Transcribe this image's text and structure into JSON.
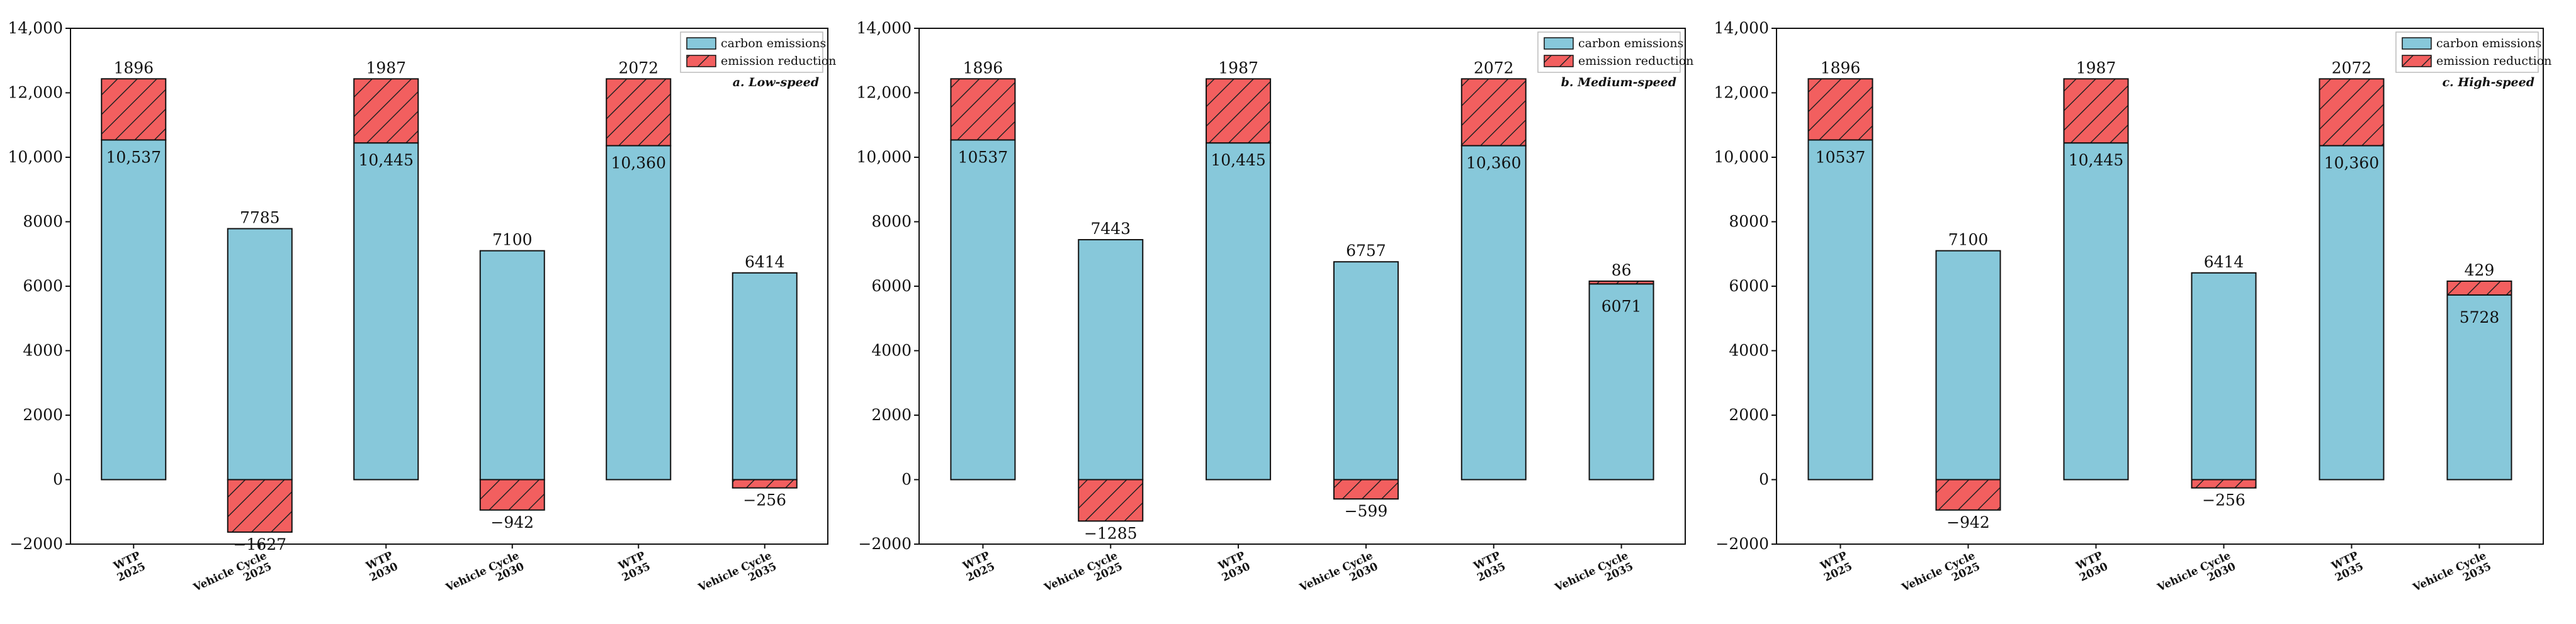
{
  "colors": {
    "carbon": "#87c8da",
    "reduction": "#f25f5f",
    "edge": "#111111",
    "hatch": "#222222"
  },
  "legend": {
    "carbon_label": "carbon emissions",
    "reduction_label": "emission reduction"
  },
  "chart_data": [
    {
      "type": "bar",
      "panel_title": "a. Low-speed",
      "ylim": [
        -2000,
        14000
      ],
      "yticks": [
        {
          "value": -2000,
          "label": "−2000"
        },
        {
          "value": 0,
          "label": "0"
        },
        {
          "value": 2000,
          "label": "2000"
        },
        {
          "value": 4000,
          "label": "4000"
        },
        {
          "value": 6000,
          "label": "6000"
        },
        {
          "value": 8000,
          "label": "8000"
        },
        {
          "value": 10000,
          "label": "10,000"
        },
        {
          "value": 12000,
          "label": "12,000"
        },
        {
          "value": 14000,
          "label": "14,000"
        }
      ],
      "categories": [
        {
          "line1": "WTP",
          "line2": "2025"
        },
        {
          "line1": "Vehicle Cycle",
          "line2": "2025"
        },
        {
          "line1": "WTP",
          "line2": "2030"
        },
        {
          "line1": "Vehicle Cycle",
          "line2": "2030"
        },
        {
          "line1": "WTP",
          "line2": "2035"
        },
        {
          "line1": "Vehicle Cycle",
          "line2": "2035"
        }
      ],
      "series": [
        {
          "name": "carbon emissions",
          "values": [
            10537,
            7785,
            10445,
            7100,
            10360,
            6414
          ],
          "labels": [
            "10,537",
            "7785",
            "10,445",
            "7100",
            "10,360",
            "6414"
          ]
        },
        {
          "name": "emission reduction",
          "values": [
            1896,
            -1627,
            1987,
            -942,
            2072,
            -256
          ],
          "labels": [
            "1896",
            "−1627",
            "1987",
            "−942",
            "2072",
            "−256"
          ]
        }
      ]
    },
    {
      "type": "bar",
      "panel_title": "b. Medium-speed",
      "ylim": [
        -2000,
        14000
      ],
      "yticks": [
        {
          "value": -2000,
          "label": "−2000"
        },
        {
          "value": 0,
          "label": "0"
        },
        {
          "value": 2000,
          "label": "2000"
        },
        {
          "value": 4000,
          "label": "4000"
        },
        {
          "value": 6000,
          "label": "6000"
        },
        {
          "value": 8000,
          "label": "8000"
        },
        {
          "value": 10000,
          "label": "10,000"
        },
        {
          "value": 12000,
          "label": "12,000"
        },
        {
          "value": 14000,
          "label": "14,000"
        }
      ],
      "categories": [
        {
          "line1": "WTP",
          "line2": "2025"
        },
        {
          "line1": "Vehicle Cycle",
          "line2": "2025"
        },
        {
          "line1": "WTP",
          "line2": "2030"
        },
        {
          "line1": "Vehicle Cycle",
          "line2": "2030"
        },
        {
          "line1": "WTP",
          "line2": "2035"
        },
        {
          "line1": "Vehicle Cycle",
          "line2": "2035"
        }
      ],
      "series": [
        {
          "name": "carbon emissions",
          "values": [
            10537,
            7443,
            10445,
            6757,
            10360,
            6071
          ],
          "labels": [
            "10537",
            "7443",
            "10,445",
            "6757",
            "10,360",
            "6071"
          ]
        },
        {
          "name": "emission reduction",
          "values": [
            1896,
            -1285,
            1987,
            -599,
            2072,
            86
          ],
          "labels": [
            "1896",
            "−1285",
            "1987",
            "−599",
            "2072",
            "86"
          ]
        }
      ]
    },
    {
      "type": "bar",
      "panel_title": "c. High-speed",
      "ylim": [
        -2000,
        14000
      ],
      "yticks": [
        {
          "value": -2000,
          "label": "−2000"
        },
        {
          "value": 0,
          "label": "0"
        },
        {
          "value": 2000,
          "label": "2000"
        },
        {
          "value": 4000,
          "label": "4000"
        },
        {
          "value": 6000,
          "label": "6000"
        },
        {
          "value": 8000,
          "label": "8000"
        },
        {
          "value": 10000,
          "label": "10,000"
        },
        {
          "value": 12000,
          "label": "12,000"
        },
        {
          "value": 14000,
          "label": "14,000"
        }
      ],
      "categories": [
        {
          "line1": "WTP",
          "line2": "2025"
        },
        {
          "line1": "Vehicle Cycle",
          "line2": "2025"
        },
        {
          "line1": "WTP",
          "line2": "2030"
        },
        {
          "line1": "Vehicle Cycle",
          "line2": "2030"
        },
        {
          "line1": "WTP",
          "line2": "2035"
        },
        {
          "line1": "Vehicle Cycle",
          "line2": "2035"
        }
      ],
      "series": [
        {
          "name": "carbon emissions",
          "values": [
            10537,
            7100,
            10445,
            6414,
            10360,
            5728
          ],
          "labels": [
            "10537",
            "7100",
            "10,445",
            "6414",
            "10,360",
            "5728"
          ]
        },
        {
          "name": "emission reduction",
          "values": [
            1896,
            -942,
            1987,
            -256,
            2072,
            429
          ],
          "labels": [
            "1896",
            "−942",
            "1987",
            "−256",
            "2072",
            "429"
          ]
        }
      ]
    }
  ]
}
